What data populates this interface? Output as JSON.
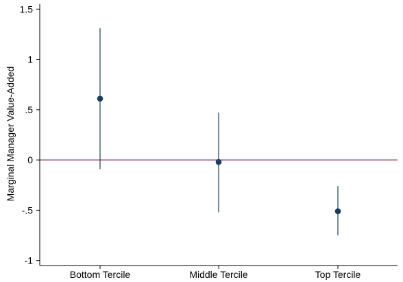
{
  "chart_data": {
    "type": "scatter",
    "title": "",
    "xlabel": "",
    "ylabel": "Marginal Manager Value-Added",
    "categories": [
      "Bottom Tercile",
      "Middle Tercile",
      "Top Tercile"
    ],
    "ylim": [
      -1.05,
      1.55
    ],
    "yticks": [
      -1,
      -0.5,
      0,
      0.5,
      1,
      1.5
    ],
    "ytick_labels": [
      "-1",
      "-.5",
      "0",
      ".5",
      "1",
      "1.5"
    ],
    "points": [
      {
        "category": "Bottom Tercile",
        "estimate": 0.61,
        "ci_low": -0.09,
        "ci_high": 1.31
      },
      {
        "category": "Middle Tercile",
        "estimate": -0.02,
        "ci_low": -0.52,
        "ci_high": 0.47
      },
      {
        "category": "Top Tercile",
        "estimate": -0.51,
        "ci_low": -0.75,
        "ci_high": -0.26
      }
    ],
    "reference_line": {
      "y": 0,
      "color": "#a0306a"
    },
    "marker_color": "#1a3d5a",
    "grid": false,
    "legend": "none"
  }
}
